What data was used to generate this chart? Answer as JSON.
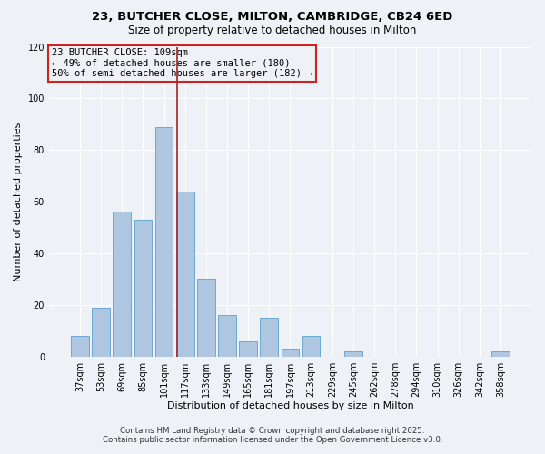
{
  "title": "23, BUTCHER CLOSE, MILTON, CAMBRIDGE, CB24 6ED",
  "subtitle": "Size of property relative to detached houses in Milton",
  "xlabel": "Distribution of detached houses by size in Milton",
  "ylabel": "Number of detached properties",
  "bar_labels": [
    "37sqm",
    "53sqm",
    "69sqm",
    "85sqm",
    "101sqm",
    "117sqm",
    "133sqm",
    "149sqm",
    "165sqm",
    "181sqm",
    "197sqm",
    "213sqm",
    "229sqm",
    "245sqm",
    "262sqm",
    "278sqm",
    "294sqm",
    "310sqm",
    "326sqm",
    "342sqm",
    "358sqm"
  ],
  "bar_values": [
    8,
    19,
    56,
    53,
    89,
    64,
    30,
    16,
    6,
    15,
    3,
    8,
    0,
    2,
    0,
    0,
    0,
    0,
    0,
    0,
    2
  ],
  "bar_color": "#aec6e0",
  "bar_edge_color": "#6aaad4",
  "ylim": [
    0,
    120
  ],
  "yticks": [
    0,
    20,
    40,
    60,
    80,
    100,
    120
  ],
  "vline_x_idx": 4.62,
  "vline_color": "#aa2222",
  "annotation_line1": "23 BUTCHER CLOSE: 109sqm",
  "annotation_line2": "← 49% of detached houses are smaller (180)",
  "annotation_line3": "50% of semi-detached houses are larger (182) →",
  "annotation_box_color": "#cc2222",
  "footer1": "Contains HM Land Registry data © Crown copyright and database right 2025.",
  "footer2": "Contains public sector information licensed under the Open Government Licence v3.0.",
  "background_color": "#eef2f7",
  "grid_color": "#ffffff",
  "title_fontsize": 9.5,
  "subtitle_fontsize": 8.5,
  "axis_label_fontsize": 8,
  "tick_fontsize": 7,
  "annotation_fontsize": 7.5,
  "footer_fontsize": 6.2
}
